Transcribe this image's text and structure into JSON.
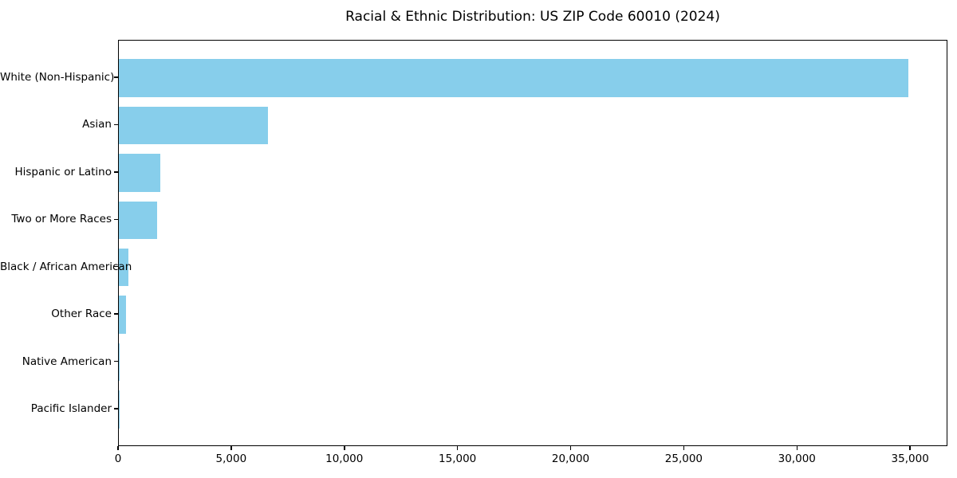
{
  "page": {
    "background_color": "#ffffff",
    "text_color": "#000000"
  },
  "chart_data": {
    "type": "bar",
    "orientation": "horizontal",
    "title": "Racial & Ethnic Distribution: US ZIP Code 60010 (2024)",
    "categories": [
      "White (Non-Hispanic)",
      "Asian",
      "Hispanic or Latino",
      "Two or More Races",
      "Black / African American",
      "Other Race",
      "Native American",
      "Pacific Islander"
    ],
    "values": [
      34900,
      6600,
      1850,
      1700,
      410,
      330,
      15,
      5
    ],
    "bar_color": "#87CEEB",
    "axis_color": "#000000",
    "grid": false,
    "legend": null,
    "xlim": [
      0,
      36650
    ],
    "xticks": [
      0,
      5000,
      10000,
      15000,
      20000,
      25000,
      30000,
      35000
    ],
    "xtick_labels": [
      "0",
      "5,000",
      "10,000",
      "15,000",
      "20,000",
      "25,000",
      "30,000",
      "35,000"
    ]
  }
}
